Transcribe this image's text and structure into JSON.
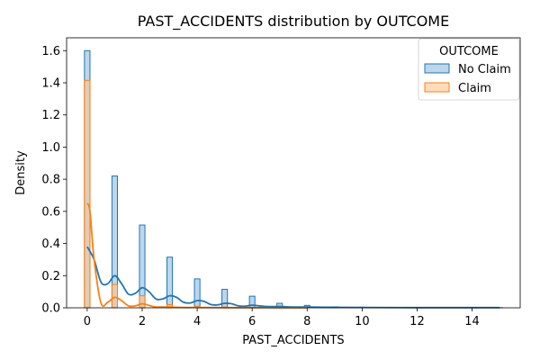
{
  "chart_data": {
    "type": "bar",
    "title": "PAST_ACCIDENTS distribution by OUTCOME",
    "xlabel": "PAST_ACCIDENTS",
    "ylabel": "Density",
    "xlim": [
      -0.75,
      15.75
    ],
    "ylim": [
      0,
      1.68
    ],
    "xticks": [
      0,
      2,
      4,
      6,
      8,
      10,
      12,
      14
    ],
    "yticks": [
      0.0,
      0.2,
      0.4,
      0.6,
      0.8,
      1.0,
      1.2,
      1.4,
      1.6
    ],
    "ytick_labels": [
      "0.0",
      "0.2",
      "0.4",
      "0.6",
      "0.8",
      "1.0",
      "1.2",
      "1.4",
      "1.6"
    ],
    "bar_width": 0.2,
    "grid": false,
    "legend": {
      "title": "OUTCOME",
      "placement": "top-right"
    },
    "series": [
      {
        "name": "No Claim",
        "color": "#1f77b4",
        "fill": "#a6c8e6",
        "x": [
          0,
          1,
          2,
          3,
          4,
          5,
          6,
          7,
          8,
          9,
          10,
          11,
          12,
          13,
          14,
          15
        ],
        "values": [
          1.6,
          0.82,
          0.515,
          0.315,
          0.18,
          0.115,
          0.072,
          0.028,
          0.015,
          0.006,
          0.004,
          0.003,
          0.002,
          0.001,
          0.001,
          0.001
        ],
        "kde_x": [
          0,
          0.25,
          0.5,
          0.75,
          1,
          1.25,
          1.5,
          1.75,
          2,
          2.25,
          2.5,
          2.75,
          3,
          3.25,
          3.5,
          3.75,
          4,
          4.25,
          4.5,
          4.75,
          5,
          5.25,
          5.5,
          5.75,
          6,
          6.5,
          7,
          7.5,
          8,
          9,
          10,
          12,
          14,
          15
        ],
        "kde_y": [
          0.38,
          0.3,
          0.16,
          0.15,
          0.2,
          0.15,
          0.085,
          0.09,
          0.125,
          0.1,
          0.055,
          0.055,
          0.075,
          0.065,
          0.035,
          0.03,
          0.045,
          0.04,
          0.02,
          0.018,
          0.028,
          0.025,
          0.012,
          0.01,
          0.016,
          0.008,
          0.008,
          0.005,
          0.005,
          0.003,
          0.002,
          0.001,
          0.001,
          0.001
        ]
      },
      {
        "name": "Claim",
        "color": "#ff7f0e",
        "fill": "#ffc58f",
        "x": [
          0,
          1,
          2,
          3,
          4,
          5,
          6,
          7,
          8
        ],
        "values": [
          1.415,
          0.145,
          0.075,
          0.02,
          0.01,
          0.005,
          0.002,
          0.001,
          0.001
        ],
        "kde_x": [
          0,
          0.1,
          0.25,
          0.5,
          0.75,
          1,
          1.25,
          1.5,
          1.75,
          2,
          2.25,
          2.5,
          3,
          3.5,
          4,
          5,
          6,
          7,
          8
        ],
        "kde_y": [
          0.65,
          0.6,
          0.3,
          0.03,
          0.035,
          0.065,
          0.045,
          0.012,
          0.012,
          0.025,
          0.015,
          0.005,
          0.005,
          0.002,
          0.002,
          0.001,
          0.001,
          0.0,
          0.0
        ]
      }
    ]
  }
}
